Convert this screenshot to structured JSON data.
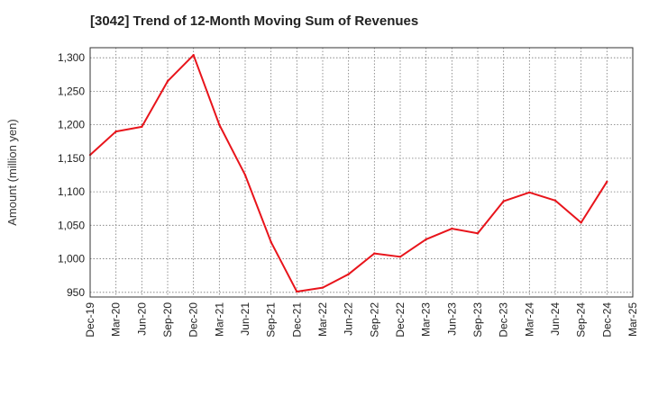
{
  "chart_data": {
    "type": "line",
    "title": "[3042]  Trend of 12-Month Moving Sum of Revenues",
    "xlabel": "",
    "ylabel": "Amount (million yen)",
    "ylim": [
      943,
      1315
    ],
    "yticks": [
      950,
      1000,
      1050,
      1100,
      1150,
      1200,
      1250,
      1300
    ],
    "ytick_labels": [
      "950",
      "1,000",
      "1,050",
      "1,100",
      "1,150",
      "1,200",
      "1,250",
      "1,300"
    ],
    "categories": [
      "Dec-19",
      "Mar-20",
      "Jun-20",
      "Sep-20",
      "Dec-20",
      "Mar-21",
      "Jun-21",
      "Sep-21",
      "Dec-21",
      "Mar-22",
      "Jun-22",
      "Sep-22",
      "Dec-22",
      "Mar-23",
      "Jun-23",
      "Sep-23",
      "Dec-23",
      "Mar-24",
      "Jun-24",
      "Sep-24",
      "Dec-24",
      "Mar-25"
    ],
    "series": [
      {
        "color": "#e8141b",
        "values": [
          1155,
          1190,
          1197,
          1265,
          1304,
          1200,
          1125,
          1025,
          951,
          957,
          977,
          1008,
          1003,
          1029,
          1045,
          1038,
          1086,
          1099,
          1087,
          1054,
          1115,
          null
        ]
      }
    ],
    "grid": true,
    "grid_style": "dotted",
    "legend": "none"
  }
}
